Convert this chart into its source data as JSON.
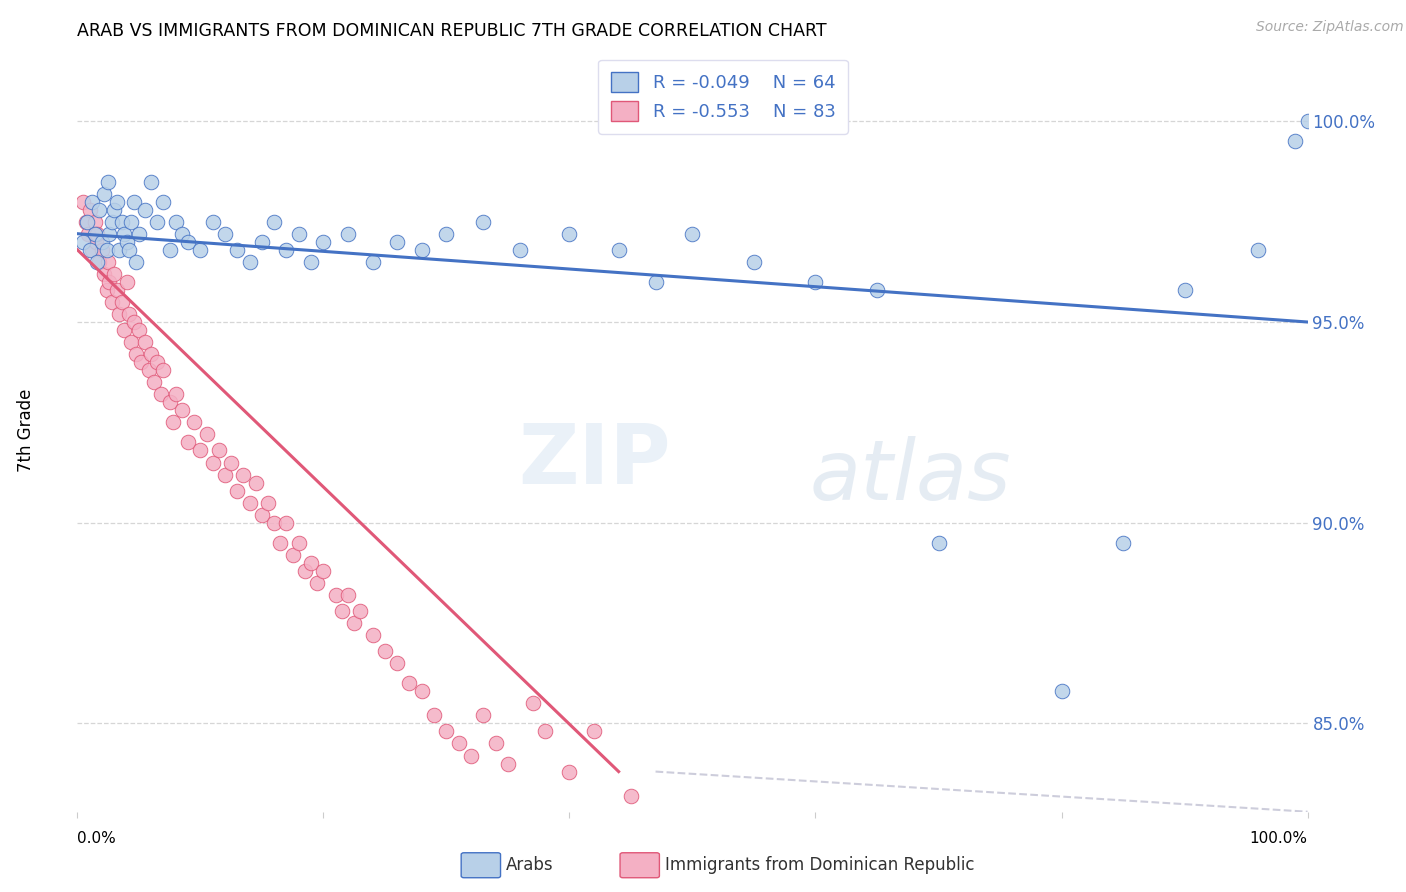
{
  "title": "ARAB VS IMMIGRANTS FROM DOMINICAN REPUBLIC 7TH GRADE CORRELATION CHART",
  "source": "Source: ZipAtlas.com",
  "ylabel": "7th Grade",
  "ytick_labels": [
    "85.0%",
    "90.0%",
    "95.0%",
    "100.0%"
  ],
  "ytick_values": [
    0.85,
    0.9,
    0.95,
    1.0
  ],
  "xlim": [
    0.0,
    1.0
  ],
  "ylim": [
    0.828,
    1.018
  ],
  "legend_R1": "-0.049",
  "legend_N1": "64",
  "legend_R2": "-0.553",
  "legend_N2": "83",
  "color_arab_fill": "#b8d0e8",
  "color_arab_edge": "#4472c4",
  "color_pink_fill": "#f4b0c4",
  "color_pink_edge": "#e05878",
  "color_arab_line": "#4472c4",
  "color_pink_line": "#e05878",
  "color_dashed": "#c8c8d8",
  "background_color": "#ffffff",
  "arab_x": [
    0.005,
    0.008,
    0.01,
    0.012,
    0.014,
    0.016,
    0.018,
    0.02,
    0.022,
    0.024,
    0.025,
    0.026,
    0.028,
    0.03,
    0.032,
    0.034,
    0.036,
    0.038,
    0.04,
    0.042,
    0.044,
    0.046,
    0.048,
    0.05,
    0.055,
    0.06,
    0.065,
    0.07,
    0.075,
    0.08,
    0.085,
    0.09,
    0.1,
    0.11,
    0.12,
    0.13,
    0.14,
    0.15,
    0.16,
    0.17,
    0.18,
    0.19,
    0.2,
    0.22,
    0.24,
    0.26,
    0.28,
    0.3,
    0.33,
    0.36,
    0.4,
    0.44,
    0.47,
    0.5,
    0.55,
    0.6,
    0.65,
    0.7,
    0.8,
    0.85,
    0.9,
    0.96,
    0.99,
    1.0
  ],
  "arab_y": [
    0.97,
    0.975,
    0.968,
    0.98,
    0.972,
    0.965,
    0.978,
    0.97,
    0.982,
    0.968,
    0.985,
    0.972,
    0.975,
    0.978,
    0.98,
    0.968,
    0.975,
    0.972,
    0.97,
    0.968,
    0.975,
    0.98,
    0.965,
    0.972,
    0.978,
    0.985,
    0.975,
    0.98,
    0.968,
    0.975,
    0.972,
    0.97,
    0.968,
    0.975,
    0.972,
    0.968,
    0.965,
    0.97,
    0.975,
    0.968,
    0.972,
    0.965,
    0.97,
    0.972,
    0.965,
    0.97,
    0.968,
    0.972,
    0.975,
    0.968,
    0.972,
    0.968,
    0.96,
    0.972,
    0.965,
    0.96,
    0.958,
    0.895,
    0.858,
    0.895,
    0.958,
    0.968,
    0.995,
    1.0
  ],
  "pink_x": [
    0.005,
    0.007,
    0.009,
    0.01,
    0.012,
    0.014,
    0.015,
    0.016,
    0.018,
    0.02,
    0.022,
    0.024,
    0.025,
    0.026,
    0.028,
    0.03,
    0.032,
    0.034,
    0.036,
    0.038,
    0.04,
    0.042,
    0.044,
    0.046,
    0.048,
    0.05,
    0.052,
    0.055,
    0.058,
    0.06,
    0.062,
    0.065,
    0.068,
    0.07,
    0.075,
    0.078,
    0.08,
    0.085,
    0.09,
    0.095,
    0.1,
    0.105,
    0.11,
    0.115,
    0.12,
    0.125,
    0.13,
    0.135,
    0.14,
    0.145,
    0.15,
    0.155,
    0.16,
    0.165,
    0.17,
    0.175,
    0.18,
    0.185,
    0.19,
    0.195,
    0.2,
    0.21,
    0.215,
    0.22,
    0.225,
    0.23,
    0.24,
    0.25,
    0.26,
    0.27,
    0.28,
    0.29,
    0.3,
    0.31,
    0.32,
    0.33,
    0.34,
    0.35,
    0.37,
    0.38,
    0.4,
    0.42,
    0.45
  ],
  "pink_y": [
    0.98,
    0.975,
    0.972,
    0.978,
    0.968,
    0.975,
    0.97,
    0.972,
    0.965,
    0.968,
    0.962,
    0.958,
    0.965,
    0.96,
    0.955,
    0.962,
    0.958,
    0.952,
    0.955,
    0.948,
    0.96,
    0.952,
    0.945,
    0.95,
    0.942,
    0.948,
    0.94,
    0.945,
    0.938,
    0.942,
    0.935,
    0.94,
    0.932,
    0.938,
    0.93,
    0.925,
    0.932,
    0.928,
    0.92,
    0.925,
    0.918,
    0.922,
    0.915,
    0.918,
    0.912,
    0.915,
    0.908,
    0.912,
    0.905,
    0.91,
    0.902,
    0.905,
    0.9,
    0.895,
    0.9,
    0.892,
    0.895,
    0.888,
    0.89,
    0.885,
    0.888,
    0.882,
    0.878,
    0.882,
    0.875,
    0.878,
    0.872,
    0.868,
    0.865,
    0.86,
    0.858,
    0.852,
    0.848,
    0.845,
    0.842,
    0.852,
    0.845,
    0.84,
    0.855,
    0.848,
    0.838,
    0.848,
    0.832
  ],
  "arab_line_x0": 0.0,
  "arab_line_y0": 0.972,
  "arab_line_x1": 1.0,
  "arab_line_y1": 0.95,
  "pink_line_x0": 0.0,
  "pink_line_y0": 0.968,
  "pink_line_x1": 0.44,
  "pink_line_y1": 0.838,
  "dash_line_x0": 0.47,
  "dash_line_y0": 0.838,
  "dash_line_x1": 1.0,
  "dash_line_y1": 0.828
}
